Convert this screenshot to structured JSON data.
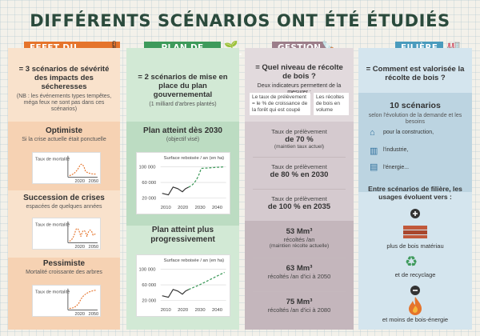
{
  "title": "DIFFÉRENTS SCÉNARIOS ONT ÉTÉ ÉTUDIÉS",
  "climate": {
    "tab": "EFFET DU CLIMAT",
    "question": "= 3 scénarios de sévérité des impacts des sécheresses",
    "note": "(NB : les événements types tempêtes, méga feux ne sont pas dans ces scénarios)",
    "scenarios": [
      {
        "title": "Optimiste",
        "desc": "Si la crise actuelle était ponctuelle",
        "ylabel": "Taux de mortalité",
        "x_ticks": [
          "2020",
          "2050"
        ]
      },
      {
        "title": "Succession de crises",
        "desc": "espacées de quelques années",
        "ylabel": "Taux de mortalité",
        "x_ticks": [
          "2020",
          "2050"
        ]
      },
      {
        "title": "Pessimiste",
        "desc": "Mortalité croissante des arbres",
        "ylabel": "Taux de mortalité",
        "x_ticks": [
          "2020",
          "2050"
        ]
      }
    ]
  },
  "renewal": {
    "tab": "PLAN DE RENOUVELLEMENT",
    "question": "= 2 scénarios de mise en place du plan gouvernemental",
    "note": "(1 milliard d'arbres plantés)",
    "plan1": {
      "title": "Plan atteint dès 2030",
      "desc": "(objectif visé)",
      "chart_title": "Surface reboisée / an (en ha)",
      "y_ticks": [
        "100 000",
        "60 000",
        "20 000"
      ],
      "x_ticks": [
        "2010",
        "2020",
        "2030",
        "2040"
      ]
    },
    "plan2": {
      "title": "Plan atteint plus progressivement",
      "chart_title": "Surface reboisée / an (en ha)",
      "y_ticks": [
        "100 000",
        "60 000",
        "20 000"
      ],
      "x_ticks": [
        "2010",
        "2020",
        "2030",
        "2040"
      ]
    }
  },
  "gestion": {
    "tab": "GESTION",
    "question": "= Quel niveau de récolte de bois ?",
    "subtitle": "Deux indicateurs permettent de la mesurer :",
    "ind1": "Le taux de prélèvement = le % de croissance de la forêt qui est coupé",
    "ind2": "Les récoltes de bois en volume",
    "rates": [
      {
        "label": "Taux de prélèvement",
        "value": "de 70 %",
        "sub": "(maintien taux actuel)"
      },
      {
        "label": "Taux de prélèvement",
        "value": "de 80 % en 2030",
        "sub": ""
      },
      {
        "label": "Taux de prélèvement",
        "value": "de 100 % en 2035",
        "sub": ""
      }
    ],
    "volumes": [
      {
        "value": "53 Mm³",
        "line1": "récoltés /an",
        "line2": "(maintien récolte actuelle)"
      },
      {
        "value": "63 Mm³",
        "line1": "récoltés /an d'ici à 2050",
        "line2": ""
      },
      {
        "value": "75 Mm³",
        "line1": "récoltés /an d'ici à 2080",
        "line2": ""
      }
    ]
  },
  "filiere": {
    "tab": "FILIÈRE",
    "question": "= Comment est valorisée la récolte de bois ?",
    "count": "10 scénarios",
    "count_desc": "selon l'évolution de la demande et les besoins",
    "uses": [
      "pour la construction,",
      "l'industrie,",
      "l'énergie..."
    ],
    "usage_title": "Entre scénarios de filière, les usages évoluent vers :",
    "trends": [
      "plus de bois matériau",
      "et de recyclage",
      "et moins de bois-énergie"
    ]
  },
  "colors": {
    "climate": "#e5742c",
    "renewal": "#3e9a5b",
    "gestion": "#9c7e8a",
    "filiere": "#4a9bbd"
  }
}
